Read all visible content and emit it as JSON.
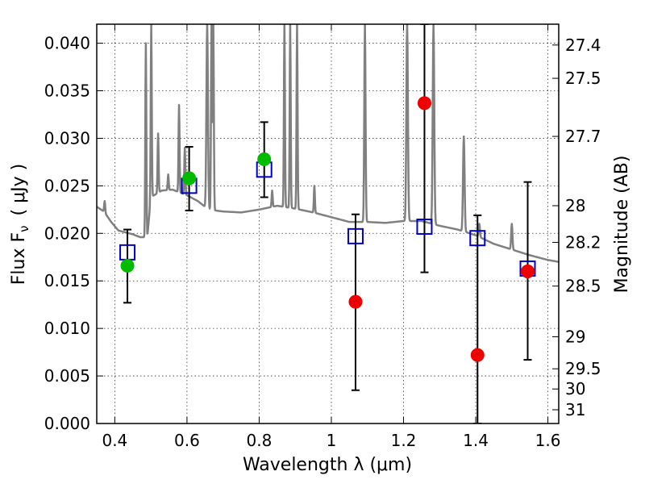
{
  "chart_data": {
    "type": "scatter",
    "xlabel": "Wavelength  λ (μm)",
    "ylabel": "Flux  F",
    "ylabel_sub": "ν",
    "ylabel_unit": "( μJy )",
    "y2label": "Magnitude (AB)",
    "xlim": [
      0.35,
      1.63
    ],
    "ylim": [
      0.0,
      0.042
    ],
    "grid": true,
    "x_ticks": [
      {
        "value": 0.4,
        "label": "0.4"
      },
      {
        "value": 0.6,
        "label": "0.6"
      },
      {
        "value": 0.8,
        "label": "0.8"
      },
      {
        "value": 1.0,
        "label": "1"
      },
      {
        "value": 1.2,
        "label": "1.2"
      },
      {
        "value": 1.4,
        "label": "1.4"
      },
      {
        "value": 1.6,
        "label": "1.6"
      }
    ],
    "y_ticks": [
      {
        "value": 0.0,
        "label": "0.000"
      },
      {
        "value": 0.005,
        "label": "0.005"
      },
      {
        "value": 0.01,
        "label": "0.010"
      },
      {
        "value": 0.015,
        "label": "0.015"
      },
      {
        "value": 0.02,
        "label": "0.020"
      },
      {
        "value": 0.025,
        "label": "0.025"
      },
      {
        "value": 0.03,
        "label": "0.030"
      },
      {
        "value": 0.035,
        "label": "0.035"
      },
      {
        "value": 0.04,
        "label": "0.040"
      }
    ],
    "y2_ticks": [
      {
        "value": 27.4,
        "label": "27.4"
      },
      {
        "value": 27.5,
        "label": "27.5"
      },
      {
        "value": 27.7,
        "label": "27.7"
      },
      {
        "value": 28.0,
        "label": "28"
      },
      {
        "value": 28.2,
        "label": "28.2"
      },
      {
        "value": 28.5,
        "label": "28.5"
      },
      {
        "value": 29.0,
        "label": "29"
      },
      {
        "value": 29.5,
        "label": "29.5"
      },
      {
        "value": 30.0,
        "label": "30"
      },
      {
        "value": 31.0,
        "label": "31"
      }
    ],
    "model_sed": {
      "color": "#808080",
      "continuum": [
        [
          0.35,
          0.0228
        ],
        [
          0.37,
          0.0223
        ],
        [
          0.39,
          0.0212
        ],
        [
          0.41,
          0.0203
        ],
        [
          0.43,
          0.0201
        ],
        [
          0.45,
          0.0199
        ],
        [
          0.47,
          0.0196
        ],
        [
          0.49,
          0.0196
        ],
        [
          0.5,
          0.0238
        ],
        [
          0.53,
          0.0245
        ],
        [
          0.56,
          0.0246
        ],
        [
          0.6,
          0.024
        ],
        [
          0.63,
          0.0234
        ],
        [
          0.66,
          0.0225
        ],
        [
          0.7,
          0.0223
        ],
        [
          0.75,
          0.0222
        ],
        [
          0.8,
          0.0225
        ],
        [
          0.85,
          0.0229
        ],
        [
          0.9,
          0.0226
        ],
        [
          0.95,
          0.0222
        ],
        [
          1.0,
          0.0217
        ],
        [
          1.05,
          0.0212
        ],
        [
          1.1,
          0.0212
        ],
        [
          1.15,
          0.0211
        ],
        [
          1.2,
          0.0213
        ],
        [
          1.25,
          0.0213
        ],
        [
          1.3,
          0.0208
        ],
        [
          1.35,
          0.0204
        ],
        [
          1.4,
          0.0198
        ],
        [
          1.45,
          0.0189
        ],
        [
          1.5,
          0.0183
        ],
        [
          1.55,
          0.0177
        ],
        [
          1.6,
          0.0172
        ],
        [
          1.63,
          0.017
        ]
      ],
      "lines": [
        {
          "x": 0.372,
          "peak": 0.0234,
          "w": 0.004
        },
        {
          "x": 0.486,
          "peak": 0.04,
          "w": 0.004
        },
        {
          "x": 0.501,
          "peak": 0.042,
          "w": 0.004
        },
        {
          "x": 0.52,
          "peak": 0.0305,
          "w": 0.004
        },
        {
          "x": 0.548,
          "peak": 0.0262,
          "w": 0.004
        },
        {
          "x": 0.578,
          "peak": 0.0335,
          "w": 0.004
        },
        {
          "x": 0.594,
          "peak": 0.029,
          "w": 0.004
        },
        {
          "x": 0.656,
          "peak": 0.042,
          "w": 0.006
        },
        {
          "x": 0.668,
          "peak": 0.042,
          "w": 0.004
        },
        {
          "x": 0.673,
          "peak": 0.042,
          "w": 0.004
        },
        {
          "x": 0.836,
          "peak": 0.0245,
          "w": 0.004
        },
        {
          "x": 0.87,
          "peak": 0.042,
          "w": 0.004
        },
        {
          "x": 0.886,
          "peak": 0.042,
          "w": 0.004
        },
        {
          "x": 0.905,
          "peak": 0.042,
          "w": 0.004
        },
        {
          "x": 0.953,
          "peak": 0.025,
          "w": 0.004
        },
        {
          "x": 1.093,
          "peak": 0.042,
          "w": 0.005
        },
        {
          "x": 1.21,
          "peak": 0.042,
          "w": 0.006
        },
        {
          "x": 1.283,
          "peak": 0.042,
          "w": 0.006
        },
        {
          "x": 1.367,
          "peak": 0.0302,
          "w": 0.006
        },
        {
          "x": 1.41,
          "peak": 0.021,
          "w": 0.005
        },
        {
          "x": 1.5,
          "peak": 0.021,
          "w": 0.005
        }
      ]
    },
    "series": [
      {
        "type": "errorbar",
        "color": "#000000",
        "points": [
          {
            "x": 0.435,
            "y": 0.0166,
            "ylo": 0.0127,
            "yhi": 0.0204
          },
          {
            "x": 0.606,
            "y": 0.0258,
            "ylo": 0.0224,
            "yhi": 0.0291
          },
          {
            "x": 0.814,
            "y": 0.0278,
            "ylo": 0.0238,
            "yhi": 0.0317
          },
          {
            "x": 1.067,
            "y": 0.0128,
            "ylo": 0.0035,
            "yhi": 0.022
          },
          {
            "x": 1.258,
            "y": 0.0337,
            "ylo": 0.0159,
            "yhi": 0.042
          },
          {
            "x": 1.405,
            "y": 0.0072,
            "ylo": 0.0,
            "yhi": 0.0219
          },
          {
            "x": 1.544,
            "y": 0.016,
            "ylo": 0.0067,
            "yhi": 0.0254
          }
        ]
      },
      {
        "type": "model_photometry",
        "marker": "square",
        "color": "#0000cc",
        "points": [
          {
            "x": 0.435,
            "y": 0.018
          },
          {
            "x": 0.606,
            "y": 0.025
          },
          {
            "x": 0.814,
            "y": 0.0267
          },
          {
            "x": 1.067,
            "y": 0.0197
          },
          {
            "x": 1.258,
            "y": 0.0207
          },
          {
            "x": 1.405,
            "y": 0.0195
          },
          {
            "x": 1.544,
            "y": 0.0163
          }
        ]
      },
      {
        "type": "detections",
        "marker": "circle",
        "color": "#00bb00",
        "points": [
          {
            "x": 0.435,
            "y": 0.0166
          },
          {
            "x": 0.606,
            "y": 0.0258
          },
          {
            "x": 0.814,
            "y": 0.0278
          }
        ]
      },
      {
        "type": "non_detections",
        "marker": "circle",
        "color": "#ee0000",
        "points": [
          {
            "x": 1.067,
            "y": 0.0128
          },
          {
            "x": 1.258,
            "y": 0.0337
          },
          {
            "x": 1.405,
            "y": 0.0072
          },
          {
            "x": 1.544,
            "y": 0.016
          }
        ]
      }
    ]
  }
}
